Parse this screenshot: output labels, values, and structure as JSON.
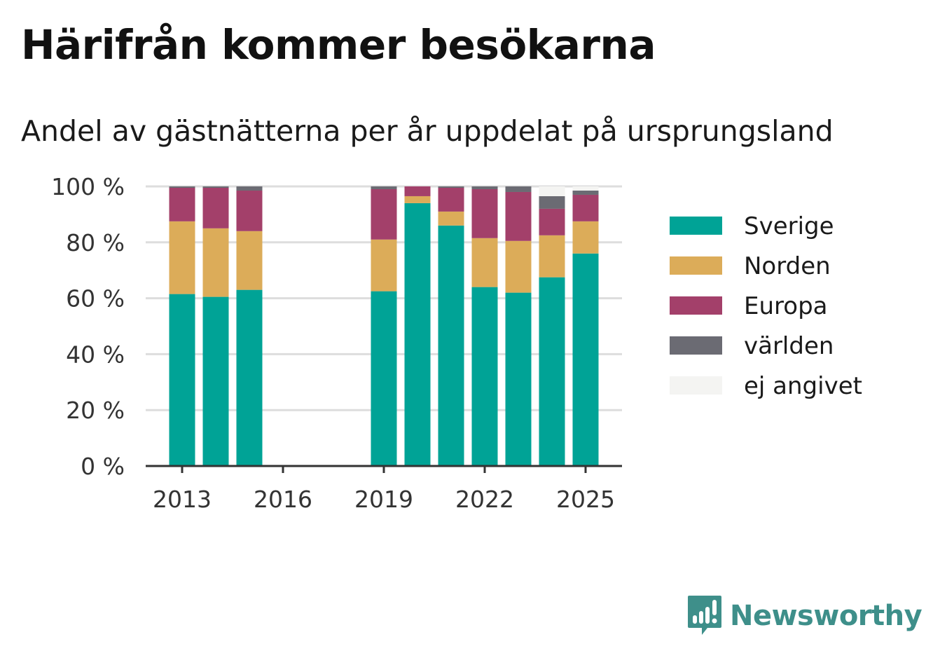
{
  "title": "Härifrån kommer besökarna",
  "subtitle": "Andel av gästnätterna per år uppdelat på ursprungsland",
  "brand": "Newsworthy",
  "colors": {
    "Sverige": "#00a396",
    "Norden": "#dcac59",
    "Europa": "#a3406a",
    "världen": "#6b6b73",
    "ej angivet": "#f4f4f2",
    "grid": "#dddddd",
    "axis": "#333333",
    "brand": "#3e8f8a"
  },
  "chart_data": {
    "type": "bar",
    "stacked": true,
    "title": "Härifrån kommer besökarna",
    "subtitle": "Andel av gästnätterna per år uppdelat på ursprungsland",
    "xlabel": "",
    "ylabel": "",
    "ylim": [
      0,
      100
    ],
    "y_ticks": [
      0,
      20,
      40,
      60,
      80,
      100
    ],
    "y_tick_labels": [
      "0 %",
      "20 %",
      "40 %",
      "60 %",
      "80 %",
      "100 %"
    ],
    "x_ticks": [
      2013,
      2016,
      2019,
      2022,
      2025
    ],
    "x_tick_labels": [
      "2013",
      "2016",
      "2019",
      "2022",
      "2025"
    ],
    "grid": true,
    "legend": "right",
    "categories": [
      2013,
      2014,
      2015,
      2016,
      2017,
      2018,
      2019,
      2020,
      2021,
      2022,
      2023,
      2024,
      2025
    ],
    "series": [
      {
        "name": "Sverige",
        "values": [
          61.5,
          60.5,
          63,
          null,
          null,
          null,
          62.5,
          94,
          86,
          64,
          62,
          67.5,
          76
        ]
      },
      {
        "name": "Norden",
        "values": [
          26,
          24.5,
          21,
          null,
          null,
          null,
          18.5,
          2.5,
          5,
          17.5,
          18.5,
          15,
          11.5
        ]
      },
      {
        "name": "Europa",
        "values": [
          12,
          14.5,
          14.5,
          null,
          null,
          null,
          18,
          3.5,
          8.5,
          17.5,
          17.5,
          9.5,
          9.5
        ]
      },
      {
        "name": "världen",
        "values": [
          0.5,
          0.5,
          1.5,
          null,
          null,
          null,
          1,
          0,
          0.5,
          1,
          2,
          4.5,
          1.5
        ]
      },
      {
        "name": "ej angivet",
        "values": [
          0,
          0,
          0,
          null,
          null,
          null,
          0,
          0,
          0,
          0,
          0,
          3.5,
          1.5
        ]
      }
    ]
  }
}
